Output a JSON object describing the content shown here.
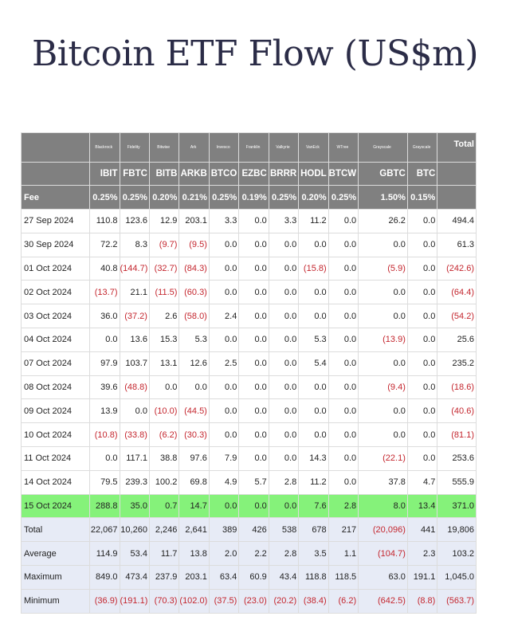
{
  "title": "Bitcoin ETF Flow (US$m)",
  "issuers": [
    "Blackrock",
    "Fidelity",
    "Bitwise",
    "Ark",
    "Invesco",
    "Franklin",
    "Valkyrie",
    "VanEck",
    "WTree",
    "Grayscale",
    "Grayscale"
  ],
  "total_label": "Total",
  "tickers": [
    "IBIT",
    "FBTC",
    "BITB",
    "ARKB",
    "BTCO",
    "EZBC",
    "BRRR",
    "HODL",
    "BTCW",
    "GBTC",
    "BTC"
  ],
  "fee_label": "Fee",
  "fees": [
    "0.25%",
    "0.25%",
    "0.20%",
    "0.21%",
    "0.25%",
    "0.19%",
    "0.25%",
    "0.20%",
    "0.25%",
    "1.50%",
    "0.15%"
  ],
  "highlight_color": "#85f27a",
  "negative_color": "#c4262e",
  "rows": [
    {
      "date": "27 Sep 2024",
      "cells": [
        "110.8",
        "123.6",
        "12.9",
        "203.1",
        "3.3",
        "0.0",
        "3.3",
        "11.2",
        "0.0",
        "26.2",
        "0.0",
        "494.4"
      ]
    },
    {
      "date": "30 Sep 2024",
      "cells": [
        "72.2",
        "8.3",
        "(9.7)",
        "(9.5)",
        "0.0",
        "0.0",
        "0.0",
        "0.0",
        "0.0",
        "0.0",
        "0.0",
        "61.3"
      ]
    },
    {
      "date": "01 Oct 2024",
      "cells": [
        "40.8",
        "(144.7)",
        "(32.7)",
        "(84.3)",
        "0.0",
        "0.0",
        "0.0",
        "(15.8)",
        "0.0",
        "(5.9)",
        "0.0",
        "(242.6)"
      ]
    },
    {
      "date": "02 Oct 2024",
      "cells": [
        "(13.7)",
        "21.1",
        "(11.5)",
        "(60.3)",
        "0.0",
        "0.0",
        "0.0",
        "0.0",
        "0.0",
        "0.0",
        "0.0",
        "(64.4)"
      ]
    },
    {
      "date": "03 Oct 2024",
      "cells": [
        "36.0",
        "(37.2)",
        "2.6",
        "(58.0)",
        "2.4",
        "0.0",
        "0.0",
        "0.0",
        "0.0",
        "0.0",
        "0.0",
        "(54.2)"
      ]
    },
    {
      "date": "04 Oct 2024",
      "cells": [
        "0.0",
        "13.6",
        "15.3",
        "5.3",
        "0.0",
        "0.0",
        "0.0",
        "5.3",
        "0.0",
        "(13.9)",
        "0.0",
        "25.6"
      ]
    },
    {
      "date": "07 Oct 2024",
      "cells": [
        "97.9",
        "103.7",
        "13.1",
        "12.6",
        "2.5",
        "0.0",
        "0.0",
        "5.4",
        "0.0",
        "0.0",
        "0.0",
        "235.2"
      ]
    },
    {
      "date": "08 Oct 2024",
      "cells": [
        "39.6",
        "(48.8)",
        "0.0",
        "0.0",
        "0.0",
        "0.0",
        "0.0",
        "0.0",
        "0.0",
        "(9.4)",
        "0.0",
        "(18.6)"
      ]
    },
    {
      "date": "09 Oct 2024",
      "cells": [
        "13.9",
        "0.0",
        "(10.0)",
        "(44.5)",
        "0.0",
        "0.0",
        "0.0",
        "0.0",
        "0.0",
        "0.0",
        "0.0",
        "(40.6)"
      ]
    },
    {
      "date": "10 Oct 2024",
      "cells": [
        "(10.8)",
        "(33.8)",
        "(6.2)",
        "(30.3)",
        "0.0",
        "0.0",
        "0.0",
        "0.0",
        "0.0",
        "0.0",
        "0.0",
        "(81.1)"
      ]
    },
    {
      "date": "11 Oct 2024",
      "cells": [
        "0.0",
        "117.1",
        "38.8",
        "97.6",
        "7.9",
        "0.0",
        "0.0",
        "14.3",
        "0.0",
        "(22.1)",
        "0.0",
        "253.6"
      ]
    },
    {
      "date": "14 Oct 2024",
      "cells": [
        "79.5",
        "239.3",
        "100.2",
        "69.8",
        "4.9",
        "5.7",
        "2.8",
        "11.2",
        "0.0",
        "37.8",
        "4.7",
        "555.9"
      ]
    },
    {
      "date": "15 Oct 2024",
      "highlight": true,
      "cells": [
        "288.8",
        "35.0",
        "0.7",
        "14.7",
        "0.0",
        "0.0",
        "0.0",
        "7.6",
        "2.8",
        "8.0",
        "13.4",
        "371.0"
      ]
    }
  ],
  "summary": [
    {
      "label": "Total",
      "cells": [
        "22,067",
        "10,260",
        "2,246",
        "2,641",
        "389",
        "426",
        "538",
        "678",
        "217",
        "(20,096)",
        "441",
        "19,806"
      ]
    },
    {
      "label": "Average",
      "cells": [
        "114.9",
        "53.4",
        "11.7",
        "13.8",
        "2.0",
        "2.2",
        "2.8",
        "3.5",
        "1.1",
        "(104.7)",
        "2.3",
        "103.2"
      ]
    },
    {
      "label": "Maximum",
      "cells": [
        "849.0",
        "473.4",
        "237.9",
        "203.1",
        "63.4",
        "60.9",
        "43.4",
        "118.8",
        "118.5",
        "63.0",
        "191.1",
        "1,045.0"
      ]
    },
    {
      "label": "Minimum",
      "cells": [
        "(36.9)",
        "(191.1)",
        "(70.3)",
        "(102.0)",
        "(37.5)",
        "(23.0)",
        "(20.2)",
        "(38.4)",
        "(6.2)",
        "(642.5)",
        "(8.8)",
        "(563.7)"
      ]
    }
  ]
}
